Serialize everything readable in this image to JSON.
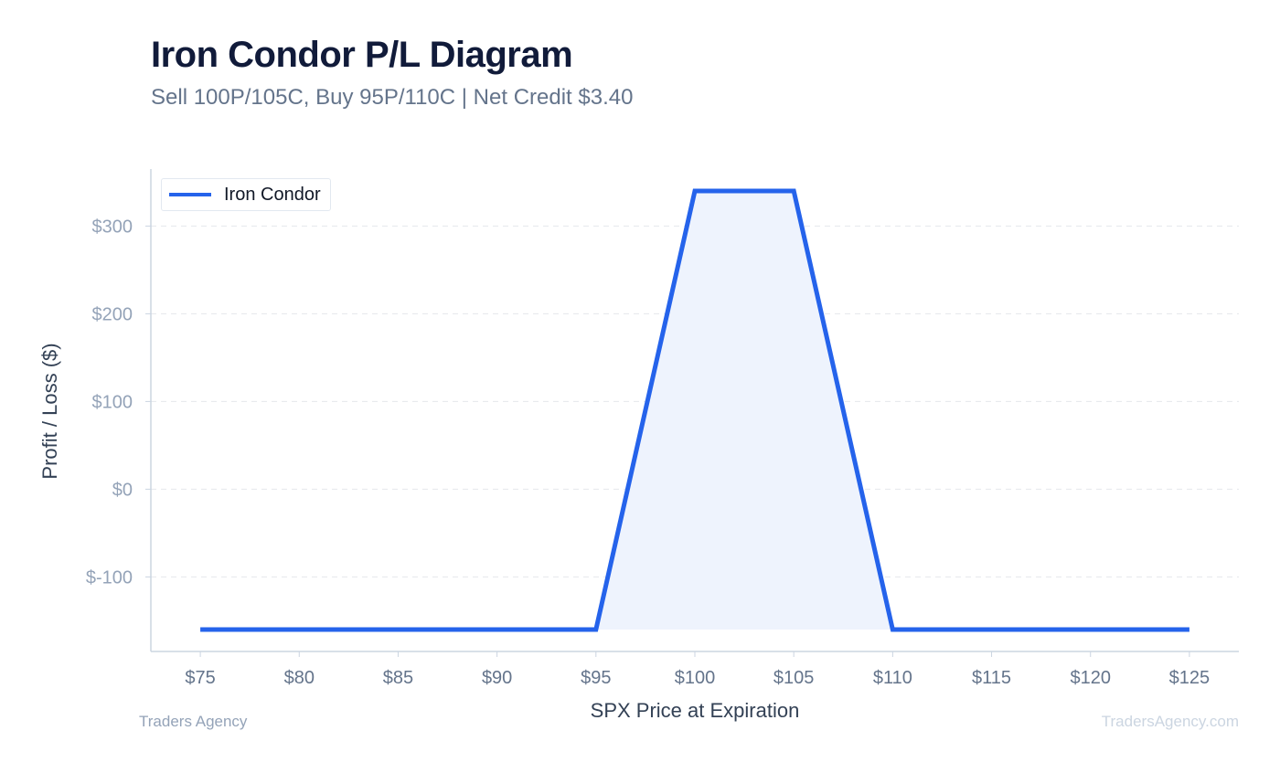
{
  "header": {
    "title": "Iron Condor P/L Diagram",
    "subtitle": "Sell 100P/105C, Buy 95P/110C | Net Credit $3.40"
  },
  "footer": {
    "left": "Traders Agency",
    "right": "TradersAgency.com"
  },
  "colors": {
    "line": "#2563eb",
    "fill": "#eef3fd",
    "grid": "#e5e7eb",
    "axis": "#cbd5e1",
    "tick_text": "#94a3b8",
    "x_tick_text": "#64748b",
    "axis_label": "#334155"
  },
  "chart_data": {
    "type": "line",
    "title": "Iron Condor P/L Diagram",
    "subtitle": "Sell 100P/105C, Buy 95P/110C | Net Credit $3.40",
    "xlabel": "SPX Price at Expiration",
    "ylabel": "Profit / Loss ($)",
    "x_ticks": [
      75,
      80,
      85,
      90,
      95,
      100,
      105,
      110,
      115,
      120,
      125
    ],
    "x_tick_labels": [
      "$75",
      "$80",
      "$85",
      "$90",
      "$95",
      "$100",
      "$105",
      "$110",
      "$115",
      "$120",
      "$125"
    ],
    "y_ticks": [
      -100,
      0,
      100,
      200,
      300
    ],
    "y_tick_labels": [
      "$-100",
      "$0",
      "$100",
      "$200",
      "$300"
    ],
    "xlim": [
      72.5,
      127.5
    ],
    "ylim": [
      -185,
      365
    ],
    "grid": "horizontal dashed",
    "legend": "top-left",
    "series": [
      {
        "name": "Iron Condor",
        "x": [
          75,
          95,
          100,
          105,
          110,
          125
        ],
        "y": [
          -160,
          -160,
          340,
          340,
          -160,
          -160
        ]
      }
    ]
  }
}
